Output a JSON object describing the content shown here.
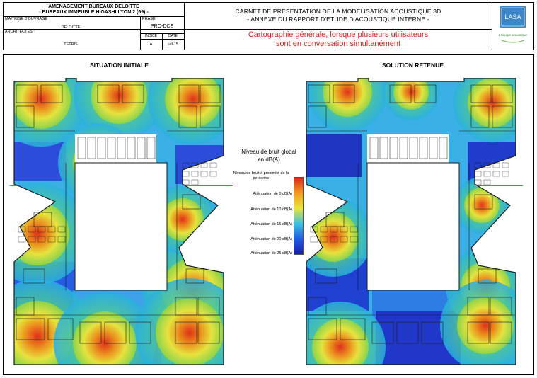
{
  "header": {
    "project_line1": "AMENAGEMENT BUREAUX DELOITTE",
    "project_line2": "- BUREAUX IMMEUBLE HIGASHI LYON 2 (69) -",
    "owner_label": "MAITRISE D'OUVRAGE",
    "owner_value": "DELOITTE",
    "architect_label": "ARCHITECTES :",
    "architect_value": "TETRIS",
    "phase_label": "PHASE",
    "phase_value": "PRO-DCE",
    "index_label": "INDICE",
    "index_value": "A",
    "date_label": "DATE",
    "date_value": "juil-15",
    "doc_title1": "CARNET DE PRESENTATION DE LA MODELISATION ACOUSTIQUE 3D",
    "doc_title2": "- ANNEXE DU RAPPORT D'ETUDE D'ACOUSTIQUE INTERNE -",
    "description1": "Cartographie générale, lorsque plusieurs utilisateurs",
    "description2": "sont en conversation simultanément",
    "logo_text": "LASA",
    "logo_tagline": "L'équipe acoustique"
  },
  "panels": {
    "left_title": "SITUATION INITIALE",
    "right_title": "SOLUTION RETENUE"
  },
  "legend": {
    "title1": "Niveau de bruit global",
    "title2": "en dB(A)",
    "levels": [
      {
        "label": "Niveau de bruit à proximité de la personne",
        "color": "#d9281c"
      },
      {
        "label": "Atténuation de 5 dB(A)",
        "color": "#f29a1e"
      },
      {
        "label": "Atténuation de 10 dB(A)",
        "color": "#e8e43a"
      },
      {
        "label": "Atténuation de 15 dB(A)",
        "color": "#3cc0e0"
      },
      {
        "label": "Atténuation de 20 dB(A)",
        "color": "#1f5ee0"
      },
      {
        "label": "Atténuation de 25 dB(A)",
        "color": "#1a1ab0"
      }
    ]
  },
  "colors": {
    "red_text": "#d72020",
    "logo_blue": "#3a86c8",
    "plan_line": "#1a1a1a"
  }
}
